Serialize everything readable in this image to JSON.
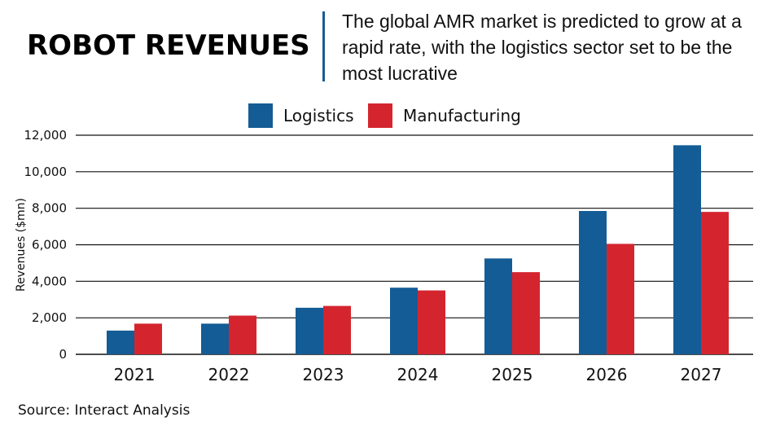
{
  "header": {
    "title": "ROBOT REVENUES",
    "subtitle": "The global AMR market is predicted to grow at a rapid rate, with the logistics sector set to be the most lucrative"
  },
  "footer": {
    "source": "Source: Interact Analysis"
  },
  "colors": {
    "logistics": "#135c96",
    "manufacturing": "#d4252f",
    "accent_divider": "#1a5b94"
  },
  "chart_data": {
    "type": "bar",
    "title": "",
    "xlabel": "",
    "ylabel": "Revenues ($mn)",
    "ylim": [
      0,
      12000
    ],
    "yticks": [
      0,
      2000,
      4000,
      6000,
      8000,
      10000,
      12000
    ],
    "ytick_labels": [
      "0",
      "2,000",
      "4,000",
      "6,000",
      "8,000",
      "10,000",
      "12,000"
    ],
    "categories": [
      "2021",
      "2022",
      "2023",
      "2024",
      "2025",
      "2026",
      "2027"
    ],
    "series": [
      {
        "name": "Logistics",
        "color": "#135c96",
        "values": [
          1300,
          1680,
          2550,
          3650,
          5250,
          7850,
          11450
        ]
      },
      {
        "name": "Manufacturing",
        "color": "#d4252f",
        "values": [
          1680,
          2120,
          2650,
          3500,
          4500,
          6050,
          7800
        ]
      }
    ],
    "grid": true,
    "legend_position": "top-center"
  }
}
